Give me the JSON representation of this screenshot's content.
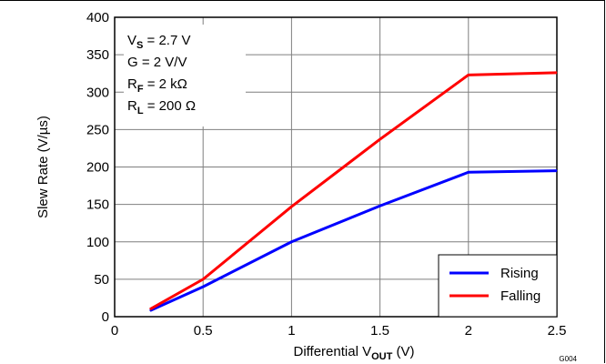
{
  "chart_data": {
    "type": "line",
    "xlabel_main": "Differential V",
    "xlabel_sub": "OUT",
    "xlabel_unit": " (V)",
    "ylabel": "Slew Rate (V/µs)",
    "xlim": [
      0,
      2.5
    ],
    "ylim": [
      0,
      400
    ],
    "x_ticks": [
      "0",
      "0.5",
      "1",
      "1.5",
      "2",
      "2.5"
    ],
    "y_ticks": [
      "0",
      "50",
      "100",
      "150",
      "200",
      "250",
      "300",
      "350",
      "400"
    ],
    "grid": true,
    "legend_position": "bottom-right",
    "conditions": [
      {
        "main": "V",
        "sub": "S",
        "rest": " = 2.7 V"
      },
      {
        "main": "G = 2 V/V",
        "sub": "",
        "rest": ""
      },
      {
        "main": "R",
        "sub": "F",
        "rest": " = 2 kΩ"
      },
      {
        "main": "R",
        "sub": "L",
        "rest": " = 200 Ω"
      }
    ],
    "figure_code": "G004",
    "series": [
      {
        "name": "Rising",
        "color": "#0000ff",
        "x": [
          0.2,
          0.5,
          1.0,
          1.5,
          2.0,
          2.5
        ],
        "y": [
          8,
          40,
          100,
          148,
          193,
          195
        ]
      },
      {
        "name": "Falling",
        "color": "#ff0000",
        "x": [
          0.2,
          0.5,
          1.0,
          1.5,
          2.0,
          2.5
        ],
        "y": [
          10,
          50,
          147,
          237,
          323,
          326
        ]
      }
    ]
  }
}
